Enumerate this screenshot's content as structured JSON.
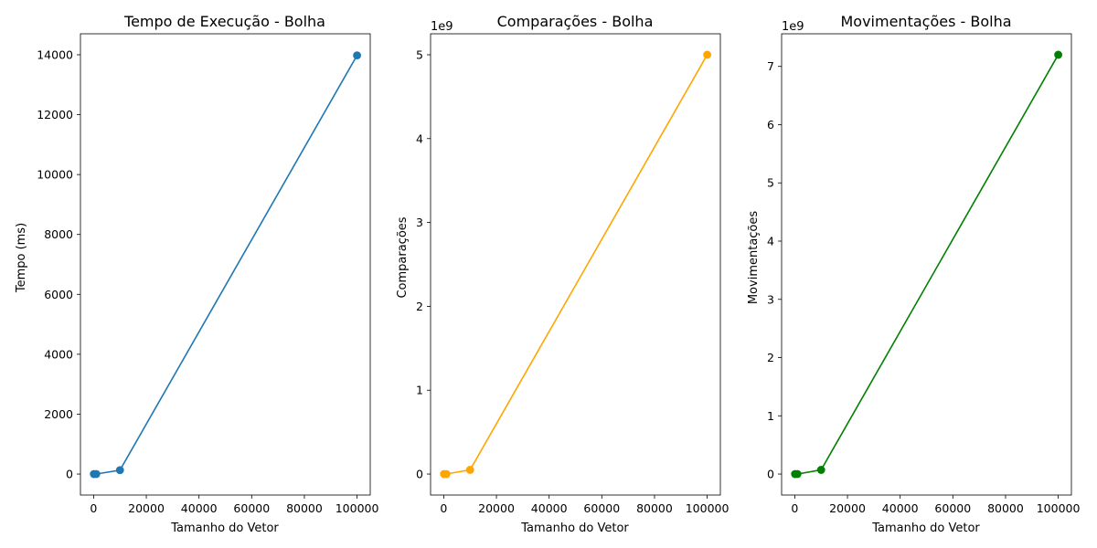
{
  "chart_data": [
    {
      "type": "line",
      "title": "Tempo de Execução - Bolha",
      "xlabel": "Tamanho do Vetor",
      "ylabel": "Tempo (ms)",
      "offset_label": "",
      "color": "#1f77b4",
      "xlim": [
        -5000,
        105000
      ],
      "ylim": [
        -700,
        14700
      ],
      "xticks": [
        0,
        20000,
        40000,
        60000,
        80000,
        100000
      ],
      "xtick_labels": [
        "0",
        "20000",
        "40000",
        "60000",
        "80000",
        "100000"
      ],
      "yticks": [
        0,
        2000,
        4000,
        6000,
        8000,
        10000,
        12000,
        14000
      ],
      "ytick_labels": [
        "0",
        "2000",
        "4000",
        "6000",
        "8000",
        "10000",
        "12000",
        "14000"
      ],
      "grid": false,
      "x": [
        100,
        1000,
        10000,
        100000
      ],
      "y": [
        0,
        1,
        130,
        13980
      ]
    },
    {
      "type": "line",
      "title": "Comparações - Bolha",
      "xlabel": "Tamanho do Vetor",
      "ylabel": "Comparações",
      "offset_label": "1e9",
      "color": "#ffa500",
      "xlim": [
        -5000,
        105000
      ],
      "ylim": [
        -0.25,
        5.25
      ],
      "xticks": [
        0,
        20000,
        40000,
        60000,
        80000,
        100000
      ],
      "xtick_labels": [
        "0",
        "20000",
        "40000",
        "60000",
        "80000",
        "100000"
      ],
      "yticks": [
        0,
        1,
        2,
        3,
        4,
        5
      ],
      "ytick_labels": [
        "0",
        "1",
        "2",
        "3",
        "4",
        "5"
      ],
      "grid": false,
      "x": [
        100,
        1000,
        10000,
        100000
      ],
      "y": [
        5e-06,
        0.0005,
        0.05,
        5.0
      ]
    },
    {
      "type": "line",
      "title": "Movimentações - Bolha",
      "xlabel": "Tamanho do Vetor",
      "ylabel": "Movimentações",
      "offset_label": "1e9",
      "color": "#008000",
      "xlim": [
        -5000,
        105000
      ],
      "ylim": [
        -0.36,
        7.56
      ],
      "xticks": [
        0,
        20000,
        40000,
        60000,
        80000,
        100000
      ],
      "xtick_labels": [
        "0",
        "20000",
        "40000",
        "60000",
        "80000",
        "100000"
      ],
      "yticks": [
        0,
        1,
        2,
        3,
        4,
        5,
        6,
        7
      ],
      "ytick_labels": [
        "0",
        "1",
        "2",
        "3",
        "4",
        "5",
        "6",
        "7"
      ],
      "grid": false,
      "x": [
        100,
        1000,
        10000,
        100000
      ],
      "y": [
        7e-06,
        0.0007,
        0.072,
        7.2
      ]
    }
  ]
}
